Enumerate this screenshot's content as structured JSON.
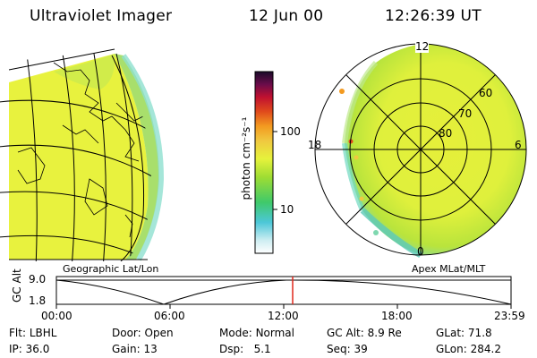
{
  "header": {
    "title": "Ultraviolet Imager",
    "date": "12 Jun 00",
    "time": "12:26:39 UT"
  },
  "colorbar": {
    "unit_label": "photon cm⁻²s⁻¹",
    "ticks": [
      "100",
      "10"
    ]
  },
  "left_panel": {
    "label": "Geographic Lat/Lon"
  },
  "right_panel": {
    "label": "Apex MLat/MLT",
    "mlt_labels": {
      "top": "12",
      "left": "18",
      "right": "6",
      "bottom": "0"
    },
    "lat_labels": [
      "60",
      "70",
      "80"
    ]
  },
  "altitude_plot": {
    "ylabel": "GC Alt",
    "y_ticks": [
      "9.0",
      "1.8"
    ],
    "x_ticks": [
      "00:00",
      "06:00",
      "12:00",
      "18:00",
      "23:59"
    ],
    "current_marker_fraction": 0.52
  },
  "info": {
    "filter": {
      "label": "Flt:",
      "value": "LBHL"
    },
    "ip": {
      "label": "IP:",
      "value": "36.0"
    },
    "door": {
      "label": "Door:",
      "value": "Open"
    },
    "gain": {
      "label": "Gain:",
      "value": "13"
    },
    "mode": {
      "label": "Mode:",
      "value": "Normal"
    },
    "dsp": {
      "label": "Dsp:",
      "value": "5.1"
    },
    "gc_alt": {
      "label": "GC Alt:",
      "value": "8.9 Re"
    },
    "seq": {
      "label": "Seq:",
      "value": "39"
    },
    "glat": {
      "label": "GLat:",
      "value": "71.8"
    },
    "glon": {
      "label": "GLon:",
      "value": "284.2"
    }
  },
  "colors": {
    "aurora_yellow": "#e6f23c",
    "aurora_green": "#9ede3c",
    "aurora_cyan": "#7fe3d6",
    "marker_red": "#e0281c"
  }
}
